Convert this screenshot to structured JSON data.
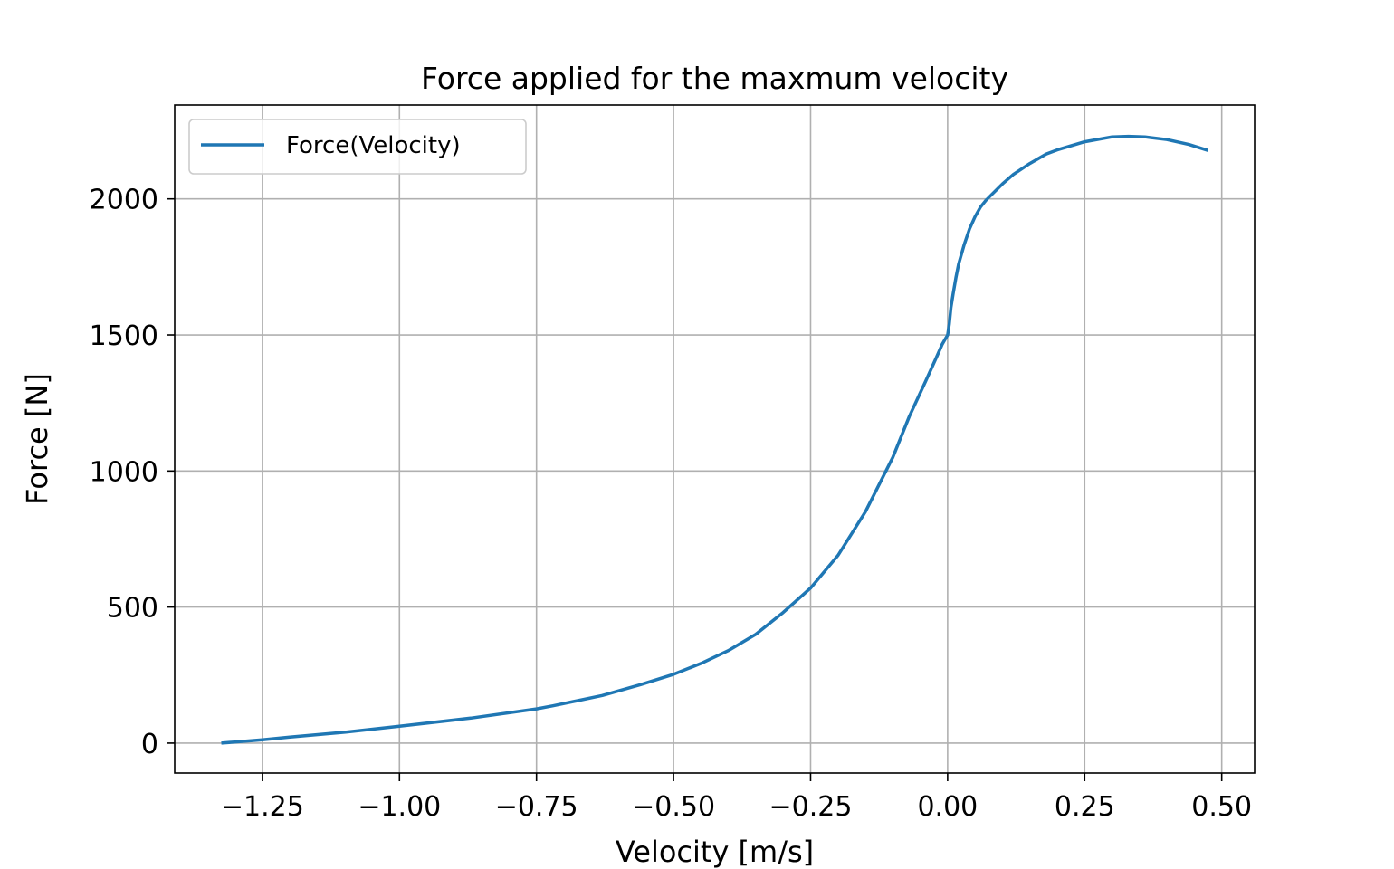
{
  "chart_data": {
    "type": "line",
    "title": "Force applied for the maxmum velocity",
    "xlabel": "Velocity [m/s]",
    "ylabel": "Force [N]",
    "xlim": [
      -1.41,
      0.56
    ],
    "ylim": [
      -110,
      2345
    ],
    "xticks": [
      -1.25,
      -1.0,
      -0.75,
      -0.5,
      -0.25,
      0.0,
      0.25,
      0.5
    ],
    "xtick_labels": [
      "−1.25",
      "−1.00",
      "−0.75",
      "−0.50",
      "−0.25",
      "0.00",
      "0.25",
      "0.50"
    ],
    "yticks": [
      0,
      500,
      1000,
      1500,
      2000
    ],
    "ytick_labels": [
      "0",
      "500",
      "1000",
      "1500",
      "2000"
    ],
    "grid": true,
    "legend": "top-left",
    "color": "#1f77b4",
    "series": [
      {
        "name": "Force(Velocity)",
        "x": [
          -1.325,
          -1.25,
          -1.2,
          -1.1,
          -1.0,
          -0.87,
          -0.75,
          -0.72,
          -0.63,
          -0.56,
          -0.5,
          -0.45,
          -0.4,
          -0.35,
          -0.3,
          -0.25,
          -0.2,
          -0.15,
          -0.1,
          -0.07,
          -0.04,
          -0.02,
          -0.01,
          0.0,
          0.003,
          0.006,
          0.01,
          0.015,
          0.02,
          0.03,
          0.04,
          0.05,
          0.06,
          0.07,
          0.08,
          0.1,
          0.12,
          0.15,
          0.18,
          0.2,
          0.25,
          0.3,
          0.33,
          0.36,
          0.4,
          0.44,
          0.475
        ],
        "y": [
          0,
          12,
          22,
          40,
          62,
          92,
          126,
          137,
          175,
          215,
          253,
          293,
          340,
          400,
          480,
          570,
          690,
          850,
          1050,
          1200,
          1330,
          1420,
          1465,
          1500,
          1540,
          1600,
          1650,
          1710,
          1760,
          1830,
          1890,
          1935,
          1970,
          1995,
          2015,
          2055,
          2090,
          2130,
          2165,
          2180,
          2210,
          2228,
          2230,
          2228,
          2218,
          2200,
          2178
        ]
      }
    ]
  }
}
